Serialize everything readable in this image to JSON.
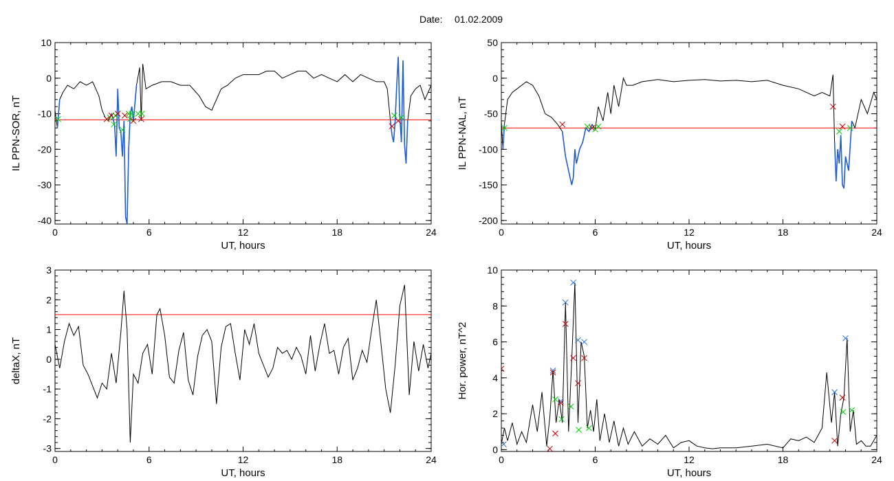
{
  "header": {
    "date_label": "Date:",
    "date_value": "01.02.2009"
  },
  "colors": {
    "trace": "#000000",
    "threshold": "#ff0000",
    "highlight": "#1f5fd0",
    "marker_red": "#c00000",
    "marker_green": "#00cc00",
    "marker_blue": "#1f6fd0"
  },
  "chart_data": [
    {
      "type": "line",
      "ylabel": "IL PPN-SOR, nT",
      "xlabel": "UT, hours",
      "xlim": [
        0,
        24
      ],
      "ylim": [
        -41,
        10
      ],
      "xticks": [
        0,
        6,
        12,
        18,
        24
      ],
      "yticks": [
        10,
        0,
        -10,
        -20,
        -30,
        -40
      ],
      "threshold": -11.7,
      "series": [
        {
          "x": [
            0,
            0.15,
            0.3,
            0.5,
            0.8,
            1.2,
            1.6,
            2,
            2.4,
            2.8,
            3.0,
            3.2,
            3.4,
            3.6,
            3.8,
            3.9,
            4.0,
            4.1,
            4.2,
            4.3,
            4.4,
            4.5,
            4.6,
            4.7,
            4.8,
            4.9,
            5.0,
            5.2,
            5.4,
            5.5,
            5.6,
            5.8,
            6.2,
            6.8,
            7.4,
            8,
            8.6,
            9.2,
            9.6,
            10,
            10.2,
            10.6,
            11,
            11.5,
            12,
            12.5,
            13,
            13.5,
            14,
            14.5,
            15,
            15.5,
            16,
            16.5,
            17,
            17.5,
            18,
            18.5,
            19,
            19.5,
            20,
            20.5,
            21,
            21.2,
            21.4,
            21.5,
            21.6,
            21.7,
            21.8,
            21.9,
            22.0,
            22.1,
            22.2,
            22.3,
            22.4,
            22.5,
            22.7,
            23,
            23.3,
            23.6,
            24
          ],
          "y": [
            -9,
            -14,
            -6,
            -4,
            -2,
            -3,
            -1,
            -2,
            -1,
            -5,
            -9,
            -11,
            -12,
            -10,
            -13,
            -22,
            -3,
            -14,
            -15,
            -22,
            -12,
            -39,
            -41,
            -20,
            -10,
            -8,
            -12,
            -2,
            3,
            -12,
            4,
            -3,
            -2,
            -1,
            -1,
            -2,
            -2,
            -5,
            -8,
            -9,
            -7,
            -3,
            -2,
            0,
            1,
            1,
            1,
            2,
            2,
            0,
            1,
            2,
            2,
            0,
            1,
            0,
            -1,
            1,
            -1,
            1,
            0,
            -1,
            -1,
            -3,
            -12,
            -16,
            -18,
            -12,
            -2,
            6,
            -11,
            -18,
            5,
            -19,
            -24,
            -12,
            -5,
            -3,
            -2,
            -6,
            -2
          ]
        }
      ],
      "highlight_ranges": [
        [
          0.15,
          0.3
        ],
        [
          3.6,
          5.2
        ],
        [
          21.4,
          22.5
        ]
      ],
      "markers": [
        {
          "x": 0.2,
          "y": -11.5,
          "color": "green"
        },
        {
          "x": 3.3,
          "y": -11.5,
          "color": "red"
        },
        {
          "x": 3.5,
          "y": -11,
          "color": "green"
        },
        {
          "x": 3.6,
          "y": -10.5,
          "color": "red"
        },
        {
          "x": 3.75,
          "y": -13,
          "color": "green"
        },
        {
          "x": 3.85,
          "y": -10.5,
          "color": "green"
        },
        {
          "x": 4.0,
          "y": -10,
          "color": "red"
        },
        {
          "x": 4.3,
          "y": -14.5,
          "color": "green"
        },
        {
          "x": 4.45,
          "y": -10.5,
          "color": "red"
        },
        {
          "x": 4.7,
          "y": -10,
          "color": "green"
        },
        {
          "x": 4.8,
          "y": -11.5,
          "color": "green"
        },
        {
          "x": 4.9,
          "y": -10,
          "color": "green"
        },
        {
          "x": 5.0,
          "y": -12,
          "color": "red"
        },
        {
          "x": 5.3,
          "y": -10,
          "color": "green"
        },
        {
          "x": 5.5,
          "y": -11.5,
          "color": "red"
        },
        {
          "x": 5.55,
          "y": -10,
          "color": "green"
        },
        {
          "x": 21.5,
          "y": -13.5,
          "color": "red"
        },
        {
          "x": 21.65,
          "y": -10.5,
          "color": "green"
        },
        {
          "x": 21.9,
          "y": -12,
          "color": "red"
        },
        {
          "x": 22.1,
          "y": -11,
          "color": "green"
        }
      ]
    },
    {
      "type": "line",
      "ylabel": "IL PPN-NAL, nT",
      "xlabel": "UT, hours",
      "xlim": [
        0,
        24
      ],
      "ylim": [
        -205,
        50
      ],
      "xticks": [
        0,
        6,
        12,
        18,
        24
      ],
      "yticks": [
        50,
        0,
        -50,
        -100,
        -150,
        -200
      ],
      "threshold": -70,
      "series": [
        {
          "x": [
            0,
            0.1,
            0.2,
            0.4,
            0.7,
            1.0,
            1.3,
            1.6,
            2,
            2.4,
            2.8,
            3.2,
            3.6,
            3.9,
            4.1,
            4.3,
            4.5,
            4.6,
            4.7,
            4.8,
            5.0,
            5.2,
            5.4,
            5.6,
            5.8,
            6.0,
            6.2,
            6.5,
            6.8,
            7.0,
            7.2,
            7.5,
            7.8,
            8.0,
            8.4,
            9,
            10,
            11,
            12,
            13,
            14,
            15,
            16,
            17,
            18,
            19,
            20,
            20.5,
            21,
            21.2,
            21.3,
            21.4,
            21.5,
            21.6,
            21.7,
            21.8,
            21.9,
            22.0,
            22.2,
            22.4,
            22.6,
            22.8,
            23,
            23.4,
            23.8,
            24
          ],
          "y": [
            -60,
            -100,
            -65,
            -30,
            -20,
            -15,
            -10,
            -5,
            -10,
            -25,
            -50,
            -55,
            -65,
            -75,
            -110,
            -130,
            -150,
            -140,
            -100,
            -120,
            -100,
            -90,
            -70,
            -75,
            -65,
            -72,
            -40,
            -60,
            -20,
            -50,
            -10,
            -40,
            0,
            -10,
            -10,
            -5,
            -2,
            -5,
            -3,
            -2,
            -4,
            -3,
            -5,
            -3,
            -10,
            -15,
            -25,
            -20,
            -25,
            5,
            -90,
            -145,
            -100,
            -120,
            -80,
            -150,
            -155,
            -110,
            -130,
            -60,
            -70,
            -50,
            -30,
            -50,
            -20,
            -30
          ]
        }
      ],
      "highlight_ranges": [
        [
          0.1,
          0.3
        ],
        [
          3.9,
          5.8
        ],
        [
          21.3,
          22.4
        ]
      ],
      "markers": [
        {
          "x": 0.2,
          "y": -70,
          "color": "green"
        },
        {
          "x": 3.9,
          "y": -65,
          "color": "red"
        },
        {
          "x": 5.5,
          "y": -68,
          "color": "green"
        },
        {
          "x": 5.8,
          "y": -70,
          "color": "red"
        },
        {
          "x": 6.0,
          "y": -72,
          "color": "green"
        },
        {
          "x": 6.2,
          "y": -68,
          "color": "green"
        },
        {
          "x": 21.2,
          "y": -40,
          "color": "red"
        },
        {
          "x": 21.6,
          "y": -75,
          "color": "green"
        },
        {
          "x": 21.8,
          "y": -68,
          "color": "red"
        },
        {
          "x": 22.3,
          "y": -70,
          "color": "green"
        }
      ]
    },
    {
      "type": "line",
      "ylabel": "deltaX, nT",
      "xlabel": "UT, hours",
      "xlim": [
        0,
        24
      ],
      "ylim": [
        -3.1,
        3
      ],
      "xticks": [
        0,
        6,
        12,
        18,
        24
      ],
      "yticks": [
        3,
        2,
        1,
        0,
        -1,
        -2,
        -3
      ],
      "threshold": 1.5,
      "series": [
        {
          "x": [
            0,
            0.3,
            0.6,
            0.9,
            1.2,
            1.5,
            1.8,
            2.1,
            2.4,
            2.7,
            3.0,
            3.3,
            3.6,
            3.9,
            4.2,
            4.4,
            4.6,
            4.8,
            5.0,
            5.3,
            5.6,
            5.9,
            6.2,
            6.5,
            6.7,
            7.0,
            7.3,
            7.6,
            7.9,
            8.2,
            8.5,
            8.8,
            9.1,
            9.4,
            9.7,
            10,
            10.3,
            10.6,
            10.9,
            11.2,
            11.5,
            11.8,
            12.1,
            12.4,
            12.7,
            13,
            13.3,
            13.6,
            13.9,
            14.2,
            14.5,
            14.8,
            15.1,
            15.4,
            15.7,
            16,
            16.3,
            16.6,
            16.9,
            17.2,
            17.5,
            17.8,
            18.1,
            18.4,
            18.7,
            19,
            19.3,
            19.6,
            19.9,
            20.2,
            20.5,
            20.8,
            21.1,
            21.4,
            21.7,
            22.0,
            22.3,
            22.6,
            22.9,
            23.2,
            23.5,
            23.8,
            24
          ],
          "y": [
            0.5,
            -0.3,
            0.6,
            1.2,
            0.8,
            1.1,
            -0.2,
            -0.5,
            -0.9,
            -1.3,
            -0.8,
            -1.0,
            0.2,
            -0.8,
            0.9,
            2.3,
            1.0,
            -2.8,
            -0.5,
            -0.8,
            0.2,
            0.5,
            -0.5,
            1.5,
            1.7,
            0.8,
            -0.6,
            -0.8,
            0.3,
            0.9,
            -0.7,
            -1.2,
            0.1,
            0.8,
            1.0,
            0.6,
            -1.5,
            0.4,
            1.1,
            1.2,
            0.2,
            -0.7,
            1.0,
            0.5,
            1.2,
            0.2,
            -0.2,
            -0.6,
            -0.3,
            0.4,
            0.2,
            0.3,
            0.0,
            0.4,
            0.1,
            -0.5,
            0.8,
            -0.4,
            0.5,
            1.2,
            0.2,
            0.3,
            -0.5,
            0.4,
            0.7,
            -0.7,
            -0.3,
            0.3,
            -0.1,
            1.0,
            2.0,
            0.5,
            -1.0,
            -1.8,
            -0.2,
            1.8,
            2.5,
            -1.2,
            0.6,
            -0.4,
            0.5,
            -0.3,
            0.2
          ]
        }
      ]
    },
    {
      "type": "line",
      "ylabel": "Hor. power, nT^2",
      "xlabel": "UT, hours",
      "xlim": [
        0,
        24
      ],
      "ylim": [
        -0.1,
        10
      ],
      "xticks": [
        0,
        6,
        12,
        18,
        24
      ],
      "yticks": [
        10,
        8,
        6,
        4,
        2,
        0
      ],
      "series": [
        {
          "x": [
            0,
            0.2,
            0.4,
            0.7,
            1.0,
            1.3,
            1.6,
            2.0,
            2.3,
            2.6,
            2.9,
            3.1,
            3.3,
            3.5,
            3.7,
            3.9,
            4.1,
            4.3,
            4.5,
            4.7,
            4.9,
            5.1,
            5.3,
            5.5,
            5.7,
            5.9,
            6.1,
            6.3,
            6.6,
            6.9,
            7.2,
            7.5,
            7.8,
            8.1,
            8.5,
            9,
            9.5,
            10,
            10.5,
            11,
            11.5,
            12,
            12.5,
            13,
            13.5,
            14,
            15,
            16,
            17,
            18,
            18.5,
            19,
            19.5,
            20,
            20.5,
            20.8,
            21.1,
            21.3,
            21.5,
            21.7,
            21.9,
            22.1,
            22.3,
            22.5,
            22.7,
            23,
            23.3,
            23.6,
            24
          ],
          "y": [
            0.3,
            1.2,
            0.5,
            1.5,
            0.3,
            1.0,
            0.4,
            2.5,
            1.0,
            3.2,
            0.2,
            1.8,
            4.4,
            1.5,
            2.8,
            1.5,
            8.2,
            1.0,
            5.0,
            9.3,
            1.5,
            6.0,
            5.2,
            1.2,
            2.2,
            1.0,
            2.8,
            0.5,
            2.0,
            0.4,
            1.6,
            0.2,
            1.2,
            0.3,
            1.0,
            0.2,
            0.6,
            0.3,
            0.8,
            0.1,
            0.4,
            0.5,
            0.2,
            0.1,
            0.05,
            0.1,
            0.1,
            0.2,
            0.3,
            0.1,
            0.6,
            0.5,
            0.7,
            0.4,
            1.2,
            4.3,
            1.5,
            3.2,
            0.2,
            2.0,
            2.9,
            6.2,
            1.0,
            2.2,
            0.3,
            0.5,
            0.2,
            0.2,
            0.8
          ]
        }
      ],
      "markers": [
        {
          "x": 0.0,
          "y": 4.5,
          "color": "red"
        },
        {
          "x": 0.15,
          "y": 0.3,
          "color": "blue"
        },
        {
          "x": 3.1,
          "y": 0.05,
          "color": "red"
        },
        {
          "x": 3.3,
          "y": 4.4,
          "color": "blue"
        },
        {
          "x": 3.3,
          "y": 4.3,
          "color": "red"
        },
        {
          "x": 3.45,
          "y": 2.8,
          "color": "green"
        },
        {
          "x": 3.45,
          "y": 0.9,
          "color": "red"
        },
        {
          "x": 3.8,
          "y": 2.7,
          "color": "blue"
        },
        {
          "x": 3.8,
          "y": 2.6,
          "color": "red"
        },
        {
          "x": 3.85,
          "y": 1.7,
          "color": "green"
        },
        {
          "x": 4.1,
          "y": 8.2,
          "color": "blue"
        },
        {
          "x": 4.1,
          "y": 7.0,
          "color": "red"
        },
        {
          "x": 4.45,
          "y": 2.4,
          "color": "green"
        },
        {
          "x": 4.6,
          "y": 9.3,
          "color": "blue"
        },
        {
          "x": 4.6,
          "y": 5.1,
          "color": "red"
        },
        {
          "x": 4.9,
          "y": 6.1,
          "color": "blue"
        },
        {
          "x": 4.9,
          "y": 3.7,
          "color": "red"
        },
        {
          "x": 4.95,
          "y": 1.1,
          "color": "green"
        },
        {
          "x": 5.3,
          "y": 6.0,
          "color": "blue"
        },
        {
          "x": 5.3,
          "y": 5.1,
          "color": "red"
        },
        {
          "x": 5.6,
          "y": 1.2,
          "color": "green"
        },
        {
          "x": 21.3,
          "y": 3.2,
          "color": "blue"
        },
        {
          "x": 21.3,
          "y": 0.5,
          "color": "red"
        },
        {
          "x": 21.8,
          "y": 2.9,
          "color": "red"
        },
        {
          "x": 21.85,
          "y": 2.1,
          "color": "green"
        },
        {
          "x": 22.0,
          "y": 6.2,
          "color": "blue"
        },
        {
          "x": 22.4,
          "y": 2.2,
          "color": "green"
        }
      ]
    }
  ]
}
